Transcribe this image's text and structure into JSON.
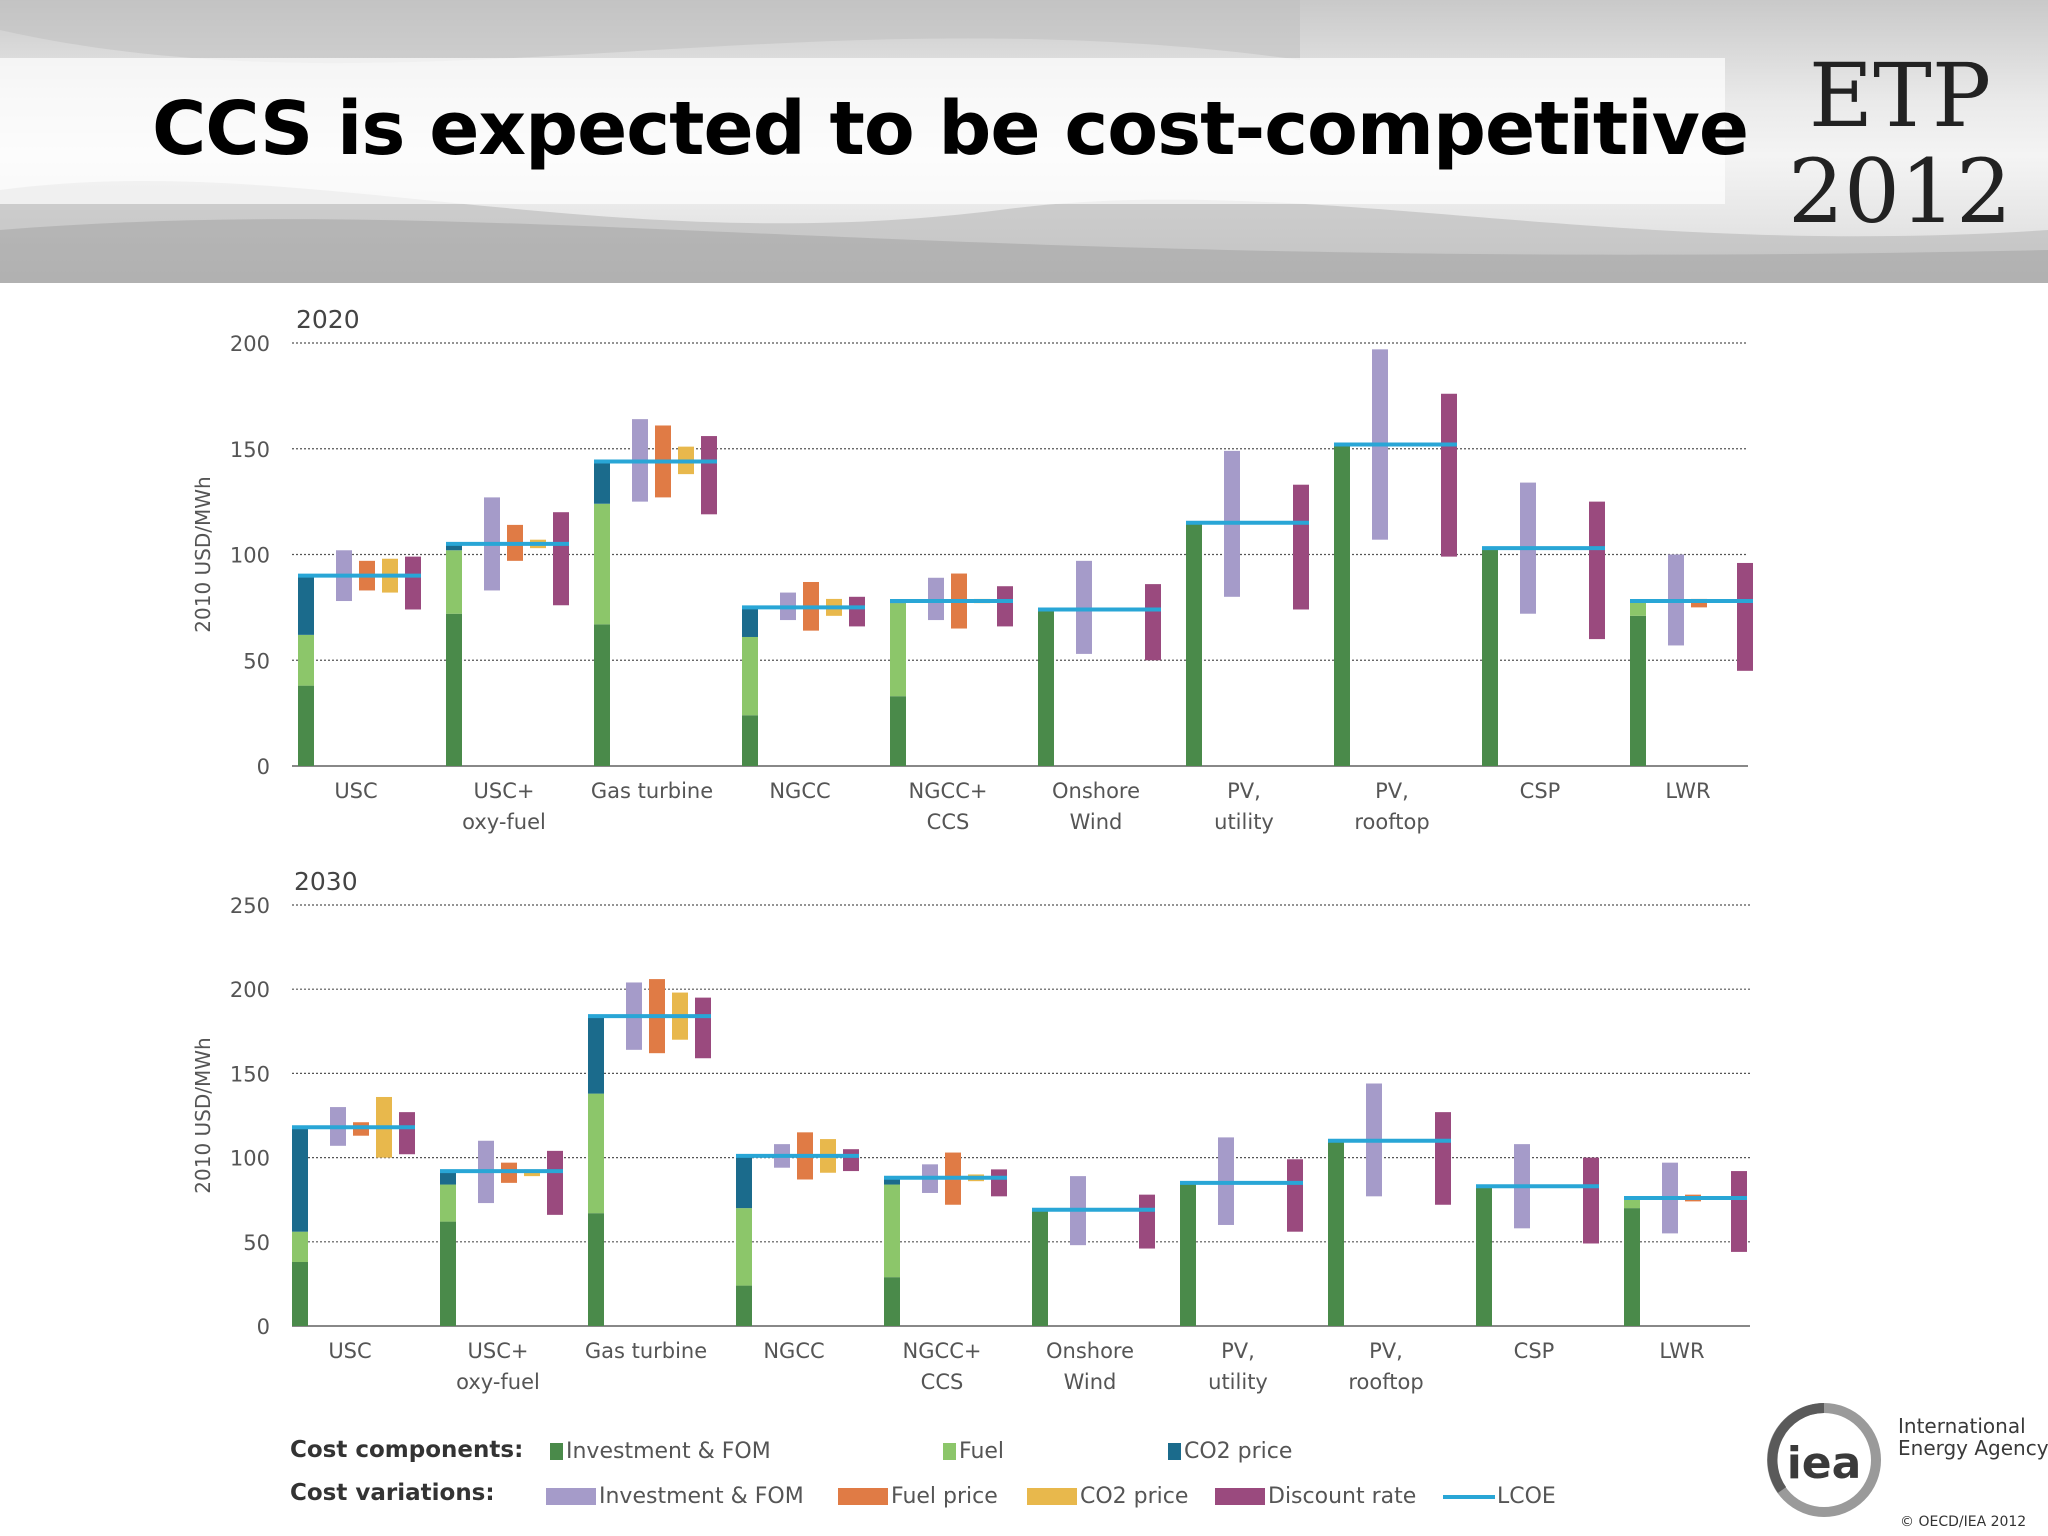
{
  "slide": {
    "title": "CCS is expected to be cost-competitive",
    "logo_line1": "ETP",
    "logo_line2": "2012"
  },
  "colors": {
    "investment_fom": "#4a8a4a",
    "fuel": "#8cc66a",
    "co2": "#1b6b8c",
    "var_investment": "#a59bc9",
    "var_fuel": "#e07b45",
    "var_co2": "#e8b84c",
    "var_discount": "#9a4a7e",
    "lcoe": "#29a6d6",
    "grid": "#555555",
    "axis_text": "#555555"
  },
  "legend": {
    "components_label": "Cost components:",
    "variations_label": "Cost variations:",
    "components": [
      "Investment & FOM",
      "Fuel",
      "CO2 price"
    ],
    "variations": [
      "Investment & FOM",
      "Fuel price",
      "CO2 price",
      "Discount rate",
      "LCOE"
    ]
  },
  "chart_data": [
    {
      "type": "bar",
      "title": "2020",
      "ylabel": "2010 USD/MWh",
      "ylim": [
        0,
        200
      ],
      "yticks": [
        0,
        50,
        100,
        150,
        200
      ],
      "grid": true,
      "categories": [
        [
          "USC"
        ],
        [
          "USC+",
          "oxy-fuel"
        ],
        [
          "Gas turbine"
        ],
        [
          "NGCC"
        ],
        [
          "NGCC+",
          "CCS"
        ],
        [
          "Onshore",
          "Wind"
        ],
        [
          "PV,",
          "utility"
        ],
        [
          "PV,",
          "rooftop"
        ],
        [
          "CSP"
        ],
        [
          "LWR"
        ]
      ],
      "series": [
        {
          "name": "Investment & FOM",
          "values": [
            38,
            72,
            67,
            24,
            33,
            74,
            115,
            152,
            103,
            71
          ]
        },
        {
          "name": "Fuel",
          "values": [
            24,
            30,
            57,
            37,
            44,
            0,
            0,
            0,
            0,
            7
          ]
        },
        {
          "name": "CO2 price",
          "values": [
            28,
            3,
            20,
            14,
            1,
            0,
            0,
            0,
            0,
            0
          ]
        }
      ],
      "lcoe": [
        90,
        105,
        144,
        75,
        78,
        74,
        115,
        152,
        103,
        78
      ],
      "variations": {
        "Investment & FOM": [
          [
            78,
            102
          ],
          [
            83,
            127
          ],
          [
            125,
            164
          ],
          [
            69,
            82
          ],
          [
            69,
            89
          ],
          [
            53,
            97
          ],
          [
            80,
            149
          ],
          [
            107,
            197
          ],
          [
            72,
            134
          ],
          [
            57,
            100
          ]
        ],
        "Fuel price": [
          [
            83,
            97
          ],
          [
            97,
            114
          ],
          [
            127,
            161
          ],
          [
            64,
            87
          ],
          [
            65,
            91
          ],
          null,
          null,
          null,
          null,
          [
            75,
            79
          ]
        ],
        "CO2 price": [
          [
            82,
            98
          ],
          [
            103,
            107
          ],
          [
            138,
            151
          ],
          [
            71,
            79
          ],
          [
            77,
            79
          ],
          null,
          null,
          null,
          null,
          null
        ],
        "Discount rate": [
          [
            74,
            99
          ],
          [
            76,
            120
          ],
          [
            119,
            156
          ],
          [
            66,
            80
          ],
          [
            66,
            85
          ],
          [
            50,
            86
          ],
          [
            74,
            133
          ],
          [
            99,
            176
          ],
          [
            60,
            125
          ],
          [
            45,
            96
          ]
        ]
      }
    },
    {
      "type": "bar",
      "title": "2030",
      "ylabel": "2010 USD/MWh",
      "ylim": [
        0,
        250
      ],
      "yticks": [
        0,
        50,
        100,
        150,
        200,
        250
      ],
      "grid": true,
      "categories": [
        [
          "USC"
        ],
        [
          "USC+",
          "oxy-fuel"
        ],
        [
          "Gas turbine"
        ],
        [
          "NGCC"
        ],
        [
          "NGCC+",
          "CCS"
        ],
        [
          "Onshore",
          "Wind"
        ],
        [
          "PV,",
          "utility"
        ],
        [
          "PV,",
          "rooftop"
        ],
        [
          "CSP"
        ],
        [
          "LWR"
        ]
      ],
      "series": [
        {
          "name": "Investment & FOM",
          "values": [
            38,
            62,
            67,
            24,
            29,
            69,
            85,
            110,
            83,
            70
          ]
        },
        {
          "name": "Fuel",
          "values": [
            18,
            22,
            71,
            46,
            55,
            0,
            0,
            0,
            0,
            6
          ]
        },
        {
          "name": "CO2 price",
          "values": [
            62,
            8,
            46,
            31,
            4,
            0,
            0,
            0,
            0,
            0
          ]
        }
      ],
      "lcoe": [
        118,
        92,
        184,
        101,
        88,
        69,
        85,
        110,
        83,
        76
      ],
      "variations": {
        "Investment & FOM": [
          [
            107,
            130
          ],
          [
            73,
            110
          ],
          [
            164,
            204
          ],
          [
            94,
            108
          ],
          [
            79,
            96
          ],
          [
            48,
            89
          ],
          [
            60,
            112
          ],
          [
            77,
            144
          ],
          [
            58,
            108
          ],
          [
            55,
            97
          ]
        ],
        "Fuel price": [
          [
            113,
            121
          ],
          [
            85,
            97
          ],
          [
            162,
            206
          ],
          [
            87,
            115
          ],
          [
            72,
            103
          ],
          null,
          null,
          null,
          null,
          [
            74,
            78
          ]
        ],
        "CO2 price": [
          [
            100,
            136
          ],
          [
            89,
            93
          ],
          [
            170,
            198
          ],
          [
            91,
            111
          ],
          [
            86,
            90
          ],
          null,
          null,
          null,
          null,
          null
        ],
        "Discount rate": [
          [
            102,
            127
          ],
          [
            66,
            104
          ],
          [
            159,
            195
          ],
          [
            92,
            105
          ],
          [
            77,
            93
          ],
          [
            46,
            78
          ],
          [
            56,
            99
          ],
          [
            72,
            127
          ],
          [
            49,
            100
          ],
          [
            44,
            92
          ]
        ]
      }
    }
  ],
  "footer": {
    "iea_name_line1": "International",
    "iea_name_line2": "Energy Agency",
    "iea_mark": "iea",
    "copyright": "© OECD/IEA 2012"
  }
}
